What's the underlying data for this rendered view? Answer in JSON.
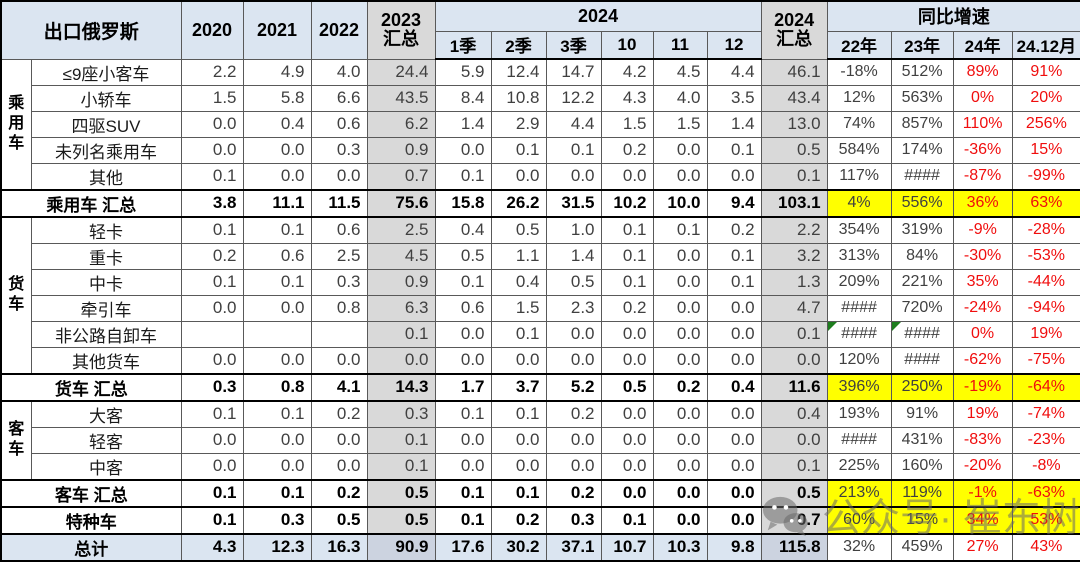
{
  "table": {
    "corner_title": "出口俄罗斯",
    "years": [
      "2020",
      "2021",
      "2022"
    ],
    "sum2023": {
      "line1": "2023",
      "line2": "汇总"
    },
    "year2024": "2024",
    "sub2024": [
      "1季",
      "2季",
      "3季",
      "10",
      "11",
      "12"
    ],
    "sum2024": {
      "line1": "2024",
      "line2": "汇总"
    },
    "yoy_title": "同比增速",
    "yoy_cols": [
      "22年",
      "23年",
      "24年",
      "24.12月"
    ]
  },
  "colors": {
    "header_bg": "#dbe5f1",
    "sum_col_bg": "#d9d9d9",
    "highlight_yellow": "#ffff00",
    "growth_red": "#f00d0d",
    "total_row_bg": "#dbe5f1"
  },
  "watermark": {
    "text": "公众号· 崔东树"
  },
  "chart_data": {
    "type": "table",
    "title": "出口俄罗斯",
    "columns": [
      "2020",
      "2021",
      "2022",
      "2023汇总",
      "2024-1季",
      "2024-2季",
      "2024-3季",
      "2024-10",
      "2024-11",
      "2024-12",
      "2024汇总",
      "同比增速22年",
      "同比增速23年",
      "同比增速24年",
      "同比增速24.12月"
    ],
    "groups": [
      {
        "name": "乘用车",
        "span": 5
      },
      {
        "name": "货车",
        "span": 6
      },
      {
        "name": "客车",
        "span": 3
      }
    ],
    "rows": [
      {
        "type": "data",
        "label": "≤9座小客车",
        "values": [
          "2.2",
          "4.9",
          "4.0",
          "24.4",
          "5.9",
          "12.4",
          "14.7",
          "4.2",
          "4.5",
          "4.4",
          "46.1"
        ],
        "yoy": [
          "-18%",
          "512%",
          "89%",
          "91%"
        ]
      },
      {
        "type": "data",
        "label": "小轿车",
        "values": [
          "1.5",
          "5.8",
          "6.6",
          "43.5",
          "8.4",
          "10.8",
          "12.2",
          "4.3",
          "4.0",
          "3.5",
          "43.4"
        ],
        "yoy": [
          "12%",
          "563%",
          "0%",
          "20%"
        ]
      },
      {
        "type": "data",
        "label": "四驱SUV",
        "values": [
          "0.0",
          "0.4",
          "0.6",
          "6.2",
          "1.4",
          "2.9",
          "4.4",
          "1.5",
          "1.5",
          "1.4",
          "13.0"
        ],
        "yoy": [
          "74%",
          "857%",
          "110%",
          "256%"
        ]
      },
      {
        "type": "data",
        "label": "未列名乘用车",
        "values": [
          "0.0",
          "0.0",
          "0.3",
          "0.9",
          "0.0",
          "0.1",
          "0.1",
          "0.2",
          "0.0",
          "0.1",
          "0.5"
        ],
        "yoy": [
          "584%",
          "174%",
          "-36%",
          "15%"
        ]
      },
      {
        "type": "data",
        "label": "其他",
        "values": [
          "0.1",
          "0.0",
          "0.0",
          "0.7",
          "0.1",
          "0.0",
          "0.0",
          "0.0",
          "0.0",
          "0.0",
          "0.1"
        ],
        "yoy": [
          "117%",
          "####",
          "-87%",
          "-99%"
        ]
      },
      {
        "type": "subtotal",
        "label": "乘用车 汇总",
        "yellow": true,
        "values": [
          "3.8",
          "11.1",
          "11.5",
          "75.6",
          "15.8",
          "26.2",
          "31.5",
          "10.2",
          "10.0",
          "9.4",
          "103.1"
        ],
        "yoy": [
          "4%",
          "556%",
          "36%",
          "63%"
        ]
      },
      {
        "type": "data",
        "label": "轻卡",
        "values": [
          "0.1",
          "0.1",
          "0.6",
          "2.5",
          "0.4",
          "0.5",
          "1.0",
          "0.1",
          "0.1",
          "0.2",
          "2.2"
        ],
        "yoy": [
          "354%",
          "319%",
          "-9%",
          "-28%"
        ]
      },
      {
        "type": "data",
        "label": "重卡",
        "values": [
          "0.2",
          "0.6",
          "2.5",
          "4.5",
          "0.5",
          "1.1",
          "1.4",
          "0.1",
          "0.0",
          "0.1",
          "3.2"
        ],
        "yoy": [
          "313%",
          "84%",
          "-30%",
          "-53%"
        ]
      },
      {
        "type": "data",
        "label": "中卡",
        "values": [
          "0.1",
          "0.1",
          "0.3",
          "0.9",
          "0.1",
          "0.4",
          "0.5",
          "0.1",
          "0.0",
          "0.1",
          "1.3"
        ],
        "yoy": [
          "209%",
          "221%",
          "35%",
          "-44%"
        ]
      },
      {
        "type": "data",
        "label": "牵引车",
        "values": [
          "0.0",
          "0.0",
          "0.8",
          "6.3",
          "0.6",
          "1.5",
          "2.3",
          "0.2",
          "0.0",
          "0.0",
          "4.7"
        ],
        "yoy": [
          "####",
          "720%",
          "-24%",
          "-94%"
        ]
      },
      {
        "type": "data",
        "label": "非公路自卸车",
        "values": [
          "",
          "",
          "",
          "0.1",
          "0.0",
          "0.1",
          "0.0",
          "0.0",
          "0.0",
          "0.0",
          "0.1"
        ],
        "yoy": [
          "####",
          "####",
          "0%",
          "19%"
        ],
        "green": [
          0,
          1
        ]
      },
      {
        "type": "data",
        "label": "其他货车",
        "values": [
          "0.0",
          "0.0",
          "0.0",
          "0.0",
          "0.0",
          "0.0",
          "0.0",
          "0.0",
          "0.0",
          "0.0",
          "0.0"
        ],
        "yoy": [
          "120%",
          "####",
          "-62%",
          "-75%"
        ]
      },
      {
        "type": "subtotal",
        "label": "货车 汇总",
        "yellow": true,
        "values": [
          "0.3",
          "0.8",
          "4.1",
          "14.3",
          "1.7",
          "3.7",
          "5.2",
          "0.5",
          "0.2",
          "0.4",
          "11.6"
        ],
        "yoy": [
          "396%",
          "250%",
          "-19%",
          "-64%"
        ]
      },
      {
        "type": "data",
        "label": "大客",
        "values": [
          "0.1",
          "0.1",
          "0.2",
          "0.3",
          "0.1",
          "0.1",
          "0.2",
          "0.0",
          "0.0",
          "0.0",
          "0.4"
        ],
        "yoy": [
          "193%",
          "91%",
          "19%",
          "-74%"
        ]
      },
      {
        "type": "data",
        "label": "轻客",
        "values": [
          "0.0",
          "0.0",
          "0.0",
          "0.1",
          "0.0",
          "0.0",
          "0.0",
          "0.0",
          "0.0",
          "0.0",
          "0.0"
        ],
        "yoy": [
          "####",
          "431%",
          "-83%",
          "-23%"
        ]
      },
      {
        "type": "data",
        "label": "中客",
        "values": [
          "0.0",
          "0.0",
          "0.0",
          "0.1",
          "0.0",
          "0.0",
          "0.0",
          "0.0",
          "0.0",
          "0.0",
          "0.1"
        ],
        "yoy": [
          "225%",
          "160%",
          "-20%",
          "-8%"
        ]
      },
      {
        "type": "subtotal",
        "label": "客车 汇总",
        "yellow": true,
        "values": [
          "0.1",
          "0.1",
          "0.2",
          "0.5",
          "0.1",
          "0.1",
          "0.2",
          "0.0",
          "0.0",
          "0.0",
          "0.5"
        ],
        "yoy": [
          "213%",
          "119%",
          "-1%",
          "-63%"
        ]
      },
      {
        "type": "special",
        "label": "特种车",
        "yellow": true,
        "values": [
          "0.1",
          "0.3",
          "0.5",
          "0.5",
          "0.1",
          "0.2",
          "0.3",
          "0.1",
          "0.0",
          "0.0",
          "0.7"
        ],
        "yoy": [
          "60%",
          "15%",
          "34%",
          "53%"
        ]
      },
      {
        "type": "total",
        "label": "总计",
        "yellow": false,
        "values": [
          "4.3",
          "12.3",
          "16.3",
          "90.9",
          "17.6",
          "30.2",
          "37.1",
          "10.7",
          "10.3",
          "9.8",
          "115.8"
        ],
        "yoy": [
          "32%",
          "459%",
          "27%",
          "43%"
        ]
      }
    ]
  }
}
